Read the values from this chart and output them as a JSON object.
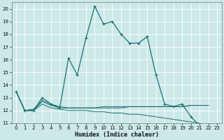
{
  "xlabel": "Humidex (Indice chaleur)",
  "background_color": "#cce8e8",
  "grid_color": "#b8d8d8",
  "line_color": "#1a7070",
  "xlim": [
    -0.5,
    23.5
  ],
  "ylim": [
    11,
    20.5
  ],
  "yticks": [
    11,
    12,
    13,
    14,
    15,
    16,
    17,
    18,
    19,
    20
  ],
  "xticks": [
    0,
    1,
    2,
    3,
    4,
    5,
    6,
    7,
    8,
    9,
    10,
    11,
    12,
    13,
    14,
    15,
    16,
    17,
    18,
    19,
    20,
    21,
    22,
    23
  ],
  "series": [
    {
      "x": [
        0,
        1,
        2,
        3,
        4,
        5,
        6,
        7,
        8,
        9,
        10,
        11,
        12,
        13,
        14,
        15,
        16,
        17,
        18,
        19,
        20,
        21,
        22
      ],
      "y": [
        13.5,
        12.0,
        12.0,
        13.0,
        12.5,
        12.2,
        16.1,
        14.8,
        17.7,
        20.2,
        18.8,
        19.0,
        18.0,
        17.3,
        17.3,
        17.8,
        14.8,
        12.5,
        12.3,
        12.5,
        11.5,
        10.8,
        10.7
      ],
      "marker": true,
      "lw": 0.9
    },
    {
      "x": [
        0,
        1,
        2,
        3,
        4,
        5,
        6,
        7,
        8,
        9,
        10,
        11,
        12,
        13,
        14,
        15,
        16,
        17,
        18,
        19,
        20,
        21,
        22
      ],
      "y": [
        13.5,
        12.0,
        12.1,
        12.8,
        12.5,
        12.3,
        12.2,
        12.2,
        12.2,
        12.2,
        12.2,
        12.2,
        12.2,
        12.3,
        12.3,
        12.3,
        12.3,
        12.3,
        12.3,
        12.3,
        12.4,
        12.4,
        12.4
      ],
      "marker": false,
      "lw": 0.7
    },
    {
      "x": [
        0,
        1,
        2,
        3,
        4,
        5,
        6,
        7,
        8,
        9,
        10,
        11,
        12,
        13,
        14,
        15,
        16,
        17,
        18,
        19,
        20,
        21,
        22
      ],
      "y": [
        13.5,
        12.0,
        12.0,
        12.5,
        12.2,
        12.1,
        12.0,
        12.0,
        12.0,
        11.9,
        11.9,
        11.8,
        11.8,
        11.7,
        11.7,
        11.6,
        11.5,
        11.4,
        11.3,
        11.2,
        11.1,
        11.0,
        10.8
      ],
      "marker": false,
      "lw": 0.7
    },
    {
      "x": [
        0,
        1,
        2,
        3,
        4,
        5,
        6,
        7,
        8,
        9,
        10,
        11,
        12,
        13,
        14,
        15,
        16,
        17,
        18,
        19,
        20,
        21,
        22
      ],
      "y": [
        13.5,
        12.0,
        12.0,
        12.7,
        12.4,
        12.2,
        12.2,
        12.2,
        12.2,
        12.2,
        12.3,
        12.3,
        12.3,
        12.3,
        12.3,
        12.3,
        12.3,
        12.3,
        12.3,
        12.3,
        12.4,
        12.4,
        12.4
      ],
      "marker": false,
      "lw": 0.7
    }
  ]
}
